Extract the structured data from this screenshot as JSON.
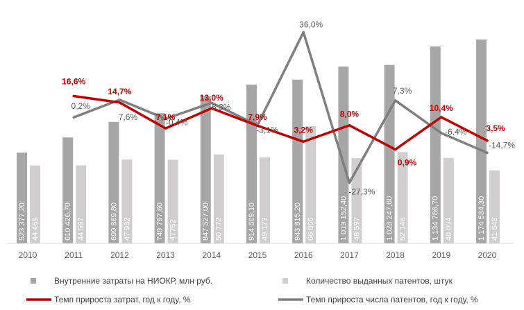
{
  "chart_data": {
    "type": "bar",
    "categories": [
      "2010",
      "2011",
      "2012",
      "2013",
      "2014",
      "2015",
      "2016",
      "2017",
      "2018",
      "2019",
      "2020"
    ],
    "series": [
      {
        "name": "Внутренние затраты на НИОКР, млн руб.",
        "kind": "bar",
        "color": "#a6a6a6",
        "values": [
          523377.2,
          610426.7,
          699869.8,
          749797.6,
          847527.0,
          914669.1,
          943815.2,
          1019152.4,
          1028247.6,
          1134786.7,
          1174534.3
        ],
        "labels": [
          "523 377,20",
          "610 426,70",
          "699 869,80",
          "749 797,60",
          "847 527,00",
          "914 669,10",
          "943 815,20",
          "1 019 152,40",
          "1 028 247,60",
          "1 134 786,70",
          "1 174 534,30"
        ]
      },
      {
        "name": "Количество выданных патентов, штук",
        "kind": "bar",
        "color": "#d0cece",
        "values": [
          44469,
          44567,
          47932,
          47752,
          50772,
          49173,
          66866,
          48587,
          52146,
          48804,
          41648
        ],
        "labels": [
          "44 469",
          "44 567",
          "47 932",
          "47752",
          "50 772",
          "49 173",
          "66 866",
          "48 587",
          "52 146",
          "48 804",
          "41 648"
        ]
      },
      {
        "name": "Темп прироста затрат, год к году, %",
        "kind": "line",
        "color": "#c00000",
        "values": [
          null,
          16.6,
          14.7,
          7.1,
          13.0,
          7.9,
          3.2,
          8.0,
          0.9,
          10.4,
          3.5
        ],
        "labels": [
          "",
          "16,6%",
          "14,7%",
          "7,1%",
          "13,0%",
          "7,9%",
          "3,2%",
          "8,0%",
          "0,9%",
          "10,4%",
          "3,5%"
        ]
      },
      {
        "name": "Темп прироста числа патентов, год к году, %",
        "kind": "line",
        "color": "#7f7f7f",
        "values": [
          null,
          0.2,
          7.6,
          -0.4,
          6.3,
          -3.1,
          36.0,
          -27.3,
          7.3,
          -6.4,
          -14.7
        ],
        "labels": [
          "",
          "0,2%",
          "7,6%",
          "-0,4%",
          "6,3%",
          "-3,1%",
          "36,0%",
          "-27,3%",
          "7,3%",
          "-6,4%",
          "-14,7%"
        ]
      }
    ],
    "xlabel": "",
    "ylabel": "",
    "legend": "bottom",
    "grid": false
  }
}
